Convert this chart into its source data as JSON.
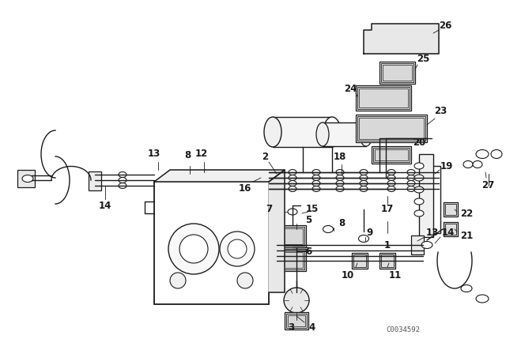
{
  "bg_color": "#ffffff",
  "line_color": "#1a1a1a",
  "catalog_number": "C0034592",
  "fig_width": 6.4,
  "fig_height": 4.48,
  "dpi": 100
}
